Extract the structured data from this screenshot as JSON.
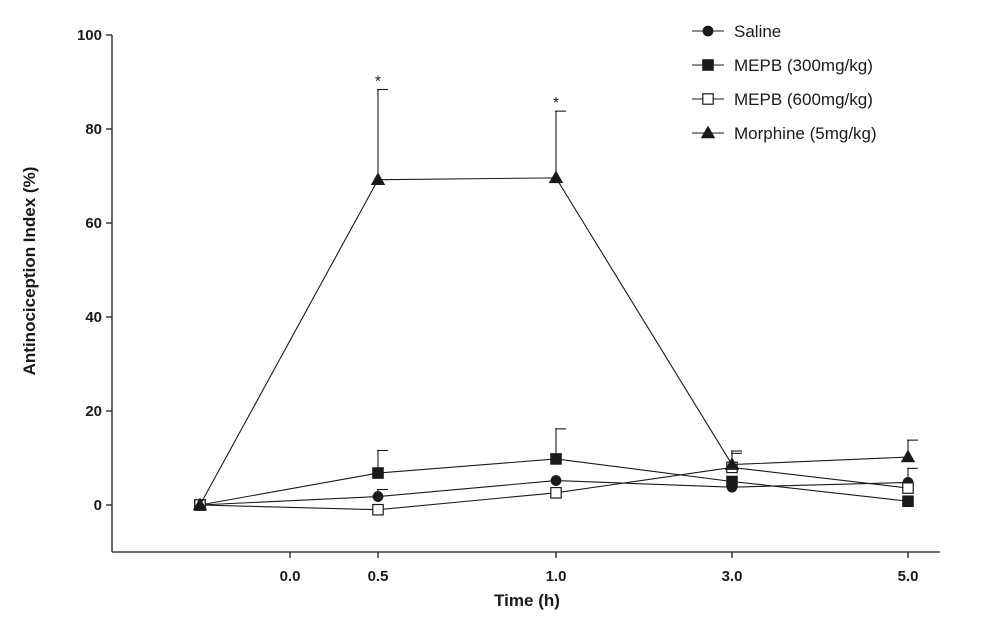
{
  "chart_data": {
    "type": "line",
    "xlabel": "Time (h)",
    "ylabel": "Antinociception Index (%)",
    "ylim": [
      0,
      100
    ],
    "yticks": [
      "0",
      "20",
      "40",
      "60",
      "80",
      "100"
    ],
    "xticks": [
      "0.0",
      "0.5",
      "1.0",
      "3.0",
      "5.0"
    ],
    "x": [
      "0.0",
      "0.5",
      "1.0",
      "3.0",
      "5.0"
    ],
    "legend_position": "top-right",
    "significance_marker": "*",
    "series": [
      {
        "name": "Saline",
        "marker": "filled-circle",
        "values": [
          0,
          1.8,
          5.2,
          3.8,
          4.8
        ],
        "errors": [
          0,
          1.5,
          0,
          0,
          0
        ]
      },
      {
        "name": "MEPB (300mg/kg)",
        "marker": "filled-square",
        "values": [
          0,
          6.8,
          9.8,
          5.0,
          0.8
        ],
        "errors": [
          0,
          4.8,
          6.4,
          0,
          0
        ]
      },
      {
        "name": "MEPB (600mg/kg)",
        "marker": "open-square",
        "values": [
          0,
          -1.0,
          2.6,
          8.0,
          3.6
        ],
        "errors": [
          0,
          0,
          0,
          3.5,
          4.2
        ]
      },
      {
        "name": "Morphine (5mg/kg)",
        "marker": "filled-triangle",
        "values": [
          0,
          69.2,
          69.6,
          8.6,
          10.2
        ],
        "errors": [
          0,
          19.2,
          14.2,
          2.4,
          3.6
        ],
        "significant": [
          false,
          true,
          true,
          false,
          false
        ]
      }
    ]
  }
}
